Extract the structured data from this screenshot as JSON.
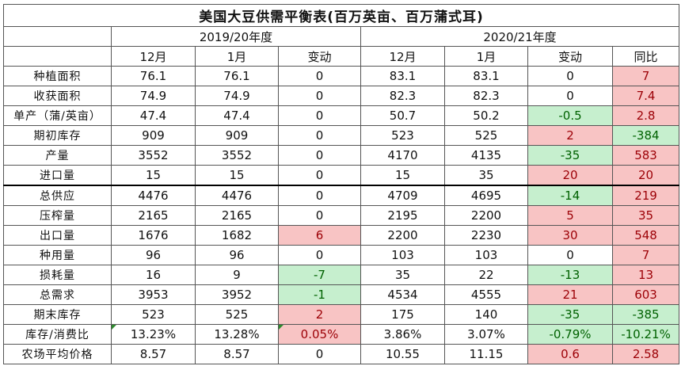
{
  "title": "美国大豆供需平衡表(百万英亩、百万蒲式耳)",
  "years": [
    "2019/20年度",
    "2020/21年度"
  ],
  "col_headers": [
    "12月",
    "1月",
    "变动",
    "12月",
    "1月",
    "变动",
    "同比"
  ],
  "rows": [
    {
      "label": "种植面积",
      "cells": [
        "76.1",
        "76.1",
        "0",
        "83.1",
        "83.1",
        "0",
        "7"
      ],
      "styles": [
        "",
        "",
        "",
        "",
        "",
        "",
        "red"
      ]
    },
    {
      "label": "收获面积",
      "cells": [
        "74.9",
        "74.9",
        "0",
        "82.3",
        "82.3",
        "0",
        "7.4"
      ],
      "styles": [
        "",
        "",
        "",
        "",
        "",
        "",
        "red"
      ]
    },
    {
      "label": "单产（蒲/英亩）",
      "cells": [
        "47.4",
        "47.4",
        "0",
        "50.7",
        "50.2",
        "-0.5",
        "2.8"
      ],
      "styles": [
        "",
        "",
        "",
        "",
        "",
        "green",
        "red"
      ]
    },
    {
      "label": "期初库存",
      "cells": [
        "909",
        "909",
        "0",
        "523",
        "525",
        "2",
        "-384"
      ],
      "styles": [
        "",
        "",
        "",
        "",
        "",
        "red",
        "green"
      ]
    },
    {
      "label": "产量",
      "cells": [
        "3552",
        "3552",
        "0",
        "4170",
        "4135",
        "-35",
        "583"
      ],
      "styles": [
        "",
        "",
        "",
        "",
        "",
        "green",
        "red"
      ]
    },
    {
      "label": "进口量",
      "cells": [
        "15",
        "15",
        "0",
        "15",
        "35",
        "20",
        "20"
      ],
      "styles": [
        "",
        "",
        "",
        "",
        "",
        "red",
        "red"
      ]
    },
    {
      "label": "总供应",
      "cells": [
        "4476",
        "4476",
        "0",
        "4709",
        "4695",
        "-14",
        "219"
      ],
      "styles": [
        "",
        "",
        "",
        "",
        "",
        "green",
        "red"
      ]
    },
    {
      "label": "压榨量",
      "cells": [
        "2165",
        "2165",
        "0",
        "2195",
        "2200",
        "5",
        "35"
      ],
      "styles": [
        "",
        "",
        "",
        "",
        "",
        "red",
        "red"
      ]
    },
    {
      "label": "出口量",
      "cells": [
        "1676",
        "1682",
        "6",
        "2200",
        "2230",
        "30",
        "548"
      ],
      "styles": [
        "",
        "",
        "red",
        "",
        "",
        "red",
        "red"
      ]
    },
    {
      "label": "种用量",
      "cells": [
        "96",
        "96",
        "0",
        "103",
        "103",
        "0",
        "7"
      ],
      "styles": [
        "",
        "",
        "",
        "",
        "",
        "",
        "red"
      ]
    },
    {
      "label": "损耗量",
      "cells": [
        "16",
        "9",
        "-7",
        "35",
        "22",
        "-13",
        "13"
      ],
      "styles": [
        "",
        "",
        "green",
        "",
        "",
        "green",
        "red"
      ]
    },
    {
      "label": "总需求",
      "cells": [
        "3953",
        "3952",
        "-1",
        "4534",
        "4555",
        "21",
        "603"
      ],
      "styles": [
        "",
        "",
        "green",
        "",
        "",
        "red",
        "red"
      ]
    },
    {
      "label": "期末库存",
      "cells": [
        "523",
        "525",
        "2",
        "175",
        "140",
        "-35",
        "-385"
      ],
      "styles": [
        "",
        "",
        "red",
        "",
        "",
        "green",
        "green"
      ]
    },
    {
      "label": "库存/消费比",
      "cells": [
        "13.23%",
        "13.28%",
        "0.05%",
        "3.86%",
        "3.07%",
        "-0.79%",
        "-10.21%"
      ],
      "styles": [
        "",
        "",
        "red",
        "",
        "",
        "green",
        "green"
      ]
    },
    {
      "label": "农场平均价格",
      "cells": [
        "8.57",
        "8.57",
        "0",
        "10.55",
        "11.15",
        "0.6",
        "2.58"
      ],
      "styles": [
        "",
        "",
        "",
        "",
        "",
        "red",
        "red"
      ]
    }
  ]
}
